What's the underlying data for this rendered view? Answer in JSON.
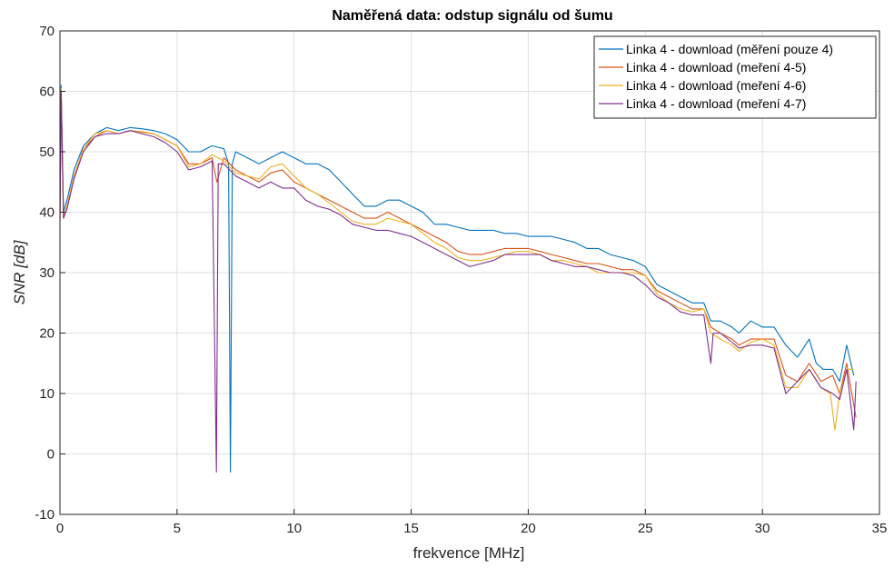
{
  "chart_data": {
    "type": "line",
    "title": "Naměřená data: odstup signálu od šumu",
    "xlabel": "frekvence [MHz]",
    "ylabel": "SNR [dB]",
    "xlim": [
      0,
      35
    ],
    "ylim": [
      -10,
      70
    ],
    "xticks": [
      0,
      5,
      10,
      15,
      20,
      25,
      30,
      35
    ],
    "yticks": [
      -10,
      0,
      10,
      20,
      30,
      40,
      50,
      60,
      70
    ],
    "grid": true,
    "legend_position": "top-right",
    "series": [
      {
        "name": "Linka 4 - download (měření pouze 4)",
        "color": "#0072BD",
        "points": [
          [
            0,
            40
          ],
          [
            0.05,
            61
          ],
          [
            0.15,
            40
          ],
          [
            0.3,
            42
          ],
          [
            0.6,
            47
          ],
          [
            1,
            51
          ],
          [
            1.5,
            53
          ],
          [
            2,
            54
          ],
          [
            2.5,
            53.5
          ],
          [
            3,
            54
          ],
          [
            3.5,
            53.8
          ],
          [
            4,
            53.5
          ],
          [
            4.5,
            53
          ],
          [
            5,
            52
          ],
          [
            5.5,
            50
          ],
          [
            6,
            50
          ],
          [
            6.5,
            51
          ],
          [
            7,
            50.5
          ],
          [
            7.2,
            48
          ],
          [
            7.28,
            -3
          ],
          [
            7.36,
            48
          ],
          [
            7.5,
            50
          ],
          [
            8,
            49
          ],
          [
            8.5,
            48
          ],
          [
            9,
            49
          ],
          [
            9.5,
            50
          ],
          [
            10,
            49
          ],
          [
            10.5,
            48
          ],
          [
            11,
            48
          ],
          [
            11.5,
            47
          ],
          [
            12,
            45
          ],
          [
            12.5,
            43
          ],
          [
            13,
            41
          ],
          [
            13.5,
            41
          ],
          [
            14,
            42
          ],
          [
            14.5,
            42
          ],
          [
            15,
            41
          ],
          [
            15.5,
            40
          ],
          [
            16,
            38
          ],
          [
            16.5,
            38
          ],
          [
            17,
            37.5
          ],
          [
            17.5,
            37
          ],
          [
            18,
            37
          ],
          [
            18.5,
            37
          ],
          [
            19,
            36.5
          ],
          [
            19.5,
            36.5
          ],
          [
            20,
            36
          ],
          [
            20.5,
            36
          ],
          [
            21,
            36
          ],
          [
            21.5,
            35.5
          ],
          [
            22,
            35
          ],
          [
            22.5,
            34
          ],
          [
            23,
            34
          ],
          [
            23.5,
            33
          ],
          [
            24,
            32.5
          ],
          [
            24.5,
            32
          ],
          [
            25,
            31
          ],
          [
            25.5,
            28
          ],
          [
            26,
            27
          ],
          [
            26.5,
            26
          ],
          [
            27,
            25
          ],
          [
            27.5,
            25
          ],
          [
            27.8,
            22
          ],
          [
            28.2,
            22
          ],
          [
            28.7,
            21
          ],
          [
            29,
            20
          ],
          [
            29.5,
            22
          ],
          [
            30,
            21
          ],
          [
            30.5,
            21
          ],
          [
            31,
            18
          ],
          [
            31.5,
            16
          ],
          [
            32,
            19
          ],
          [
            32.3,
            15
          ],
          [
            32.6,
            14
          ],
          [
            33,
            14
          ],
          [
            33.3,
            12
          ],
          [
            33.6,
            18
          ],
          [
            33.9,
            13
          ]
        ]
      },
      {
        "name": "Linka 4 - download (meření 4-5)",
        "color": "#D95319",
        "points": [
          [
            0,
            39
          ],
          [
            0.05,
            60
          ],
          [
            0.15,
            39
          ],
          [
            0.3,
            41
          ],
          [
            0.6,
            46
          ],
          [
            1,
            50.5
          ],
          [
            1.5,
            52.5
          ],
          [
            2,
            53.5
          ],
          [
            2.5,
            53
          ],
          [
            3,
            53.5
          ],
          [
            3.5,
            53.3
          ],
          [
            4,
            53
          ],
          [
            4.5,
            52
          ],
          [
            5,
            51
          ],
          [
            5.5,
            48
          ],
          [
            6,
            48
          ],
          [
            6.5,
            49
          ],
          [
            6.7,
            45
          ],
          [
            7,
            49
          ],
          [
            7.5,
            47
          ],
          [
            8,
            46
          ],
          [
            8.5,
            45
          ],
          [
            9,
            46.5
          ],
          [
            9.5,
            47
          ],
          [
            10,
            45
          ],
          [
            10.5,
            44
          ],
          [
            11,
            43
          ],
          [
            11.5,
            42
          ],
          [
            12,
            41
          ],
          [
            12.5,
            40
          ],
          [
            13,
            39
          ],
          [
            13.5,
            39
          ],
          [
            14,
            40
          ],
          [
            14.5,
            39
          ],
          [
            15,
            38
          ],
          [
            15.5,
            37
          ],
          [
            16,
            36
          ],
          [
            16.5,
            35
          ],
          [
            17,
            33.5
          ],
          [
            17.5,
            33
          ],
          [
            18,
            33
          ],
          [
            18.5,
            33.5
          ],
          [
            19,
            34
          ],
          [
            19.5,
            34
          ],
          [
            20,
            34
          ],
          [
            20.5,
            33.5
          ],
          [
            21,
            33
          ],
          [
            21.5,
            32.5
          ],
          [
            22,
            32
          ],
          [
            22.5,
            31.5
          ],
          [
            23,
            31.5
          ],
          [
            23.5,
            31
          ],
          [
            24,
            30.5
          ],
          [
            24.5,
            30.5
          ],
          [
            25,
            29.5
          ],
          [
            25.5,
            27
          ],
          [
            26,
            26
          ],
          [
            26.5,
            25
          ],
          [
            27,
            24
          ],
          [
            27.5,
            24
          ],
          [
            27.8,
            21
          ],
          [
            28.2,
            20
          ],
          [
            28.7,
            19
          ],
          [
            29,
            18
          ],
          [
            29.5,
            19
          ],
          [
            30,
            19
          ],
          [
            30.5,
            19
          ],
          [
            31,
            13
          ],
          [
            31.5,
            12
          ],
          [
            32,
            15
          ],
          [
            32.5,
            12
          ],
          [
            33,
            13
          ],
          [
            33.3,
            10
          ],
          [
            33.6,
            15
          ],
          [
            34,
            6
          ]
        ]
      },
      {
        "name": "Linka 4 - download (meření 4-6)",
        "color": "#EDB120",
        "points": [
          [
            0,
            38.5
          ],
          [
            0.05,
            60.5
          ],
          [
            0.15,
            39
          ],
          [
            0.3,
            41
          ],
          [
            0.6,
            46
          ],
          [
            1,
            50.5
          ],
          [
            1.5,
            53
          ],
          [
            2,
            53.5
          ],
          [
            2.5,
            53
          ],
          [
            3,
            53.5
          ],
          [
            3.5,
            53.2
          ],
          [
            4,
            53
          ],
          [
            4.5,
            52
          ],
          [
            5,
            51
          ],
          [
            5.5,
            47.5
          ],
          [
            6,
            48
          ],
          [
            6.5,
            49.5
          ],
          [
            7,
            48.5
          ],
          [
            7.5,
            46.5
          ],
          [
            8,
            46
          ],
          [
            8.5,
            45.5
          ],
          [
            9,
            47.5
          ],
          [
            9.5,
            48
          ],
          [
            10,
            46
          ],
          [
            10.5,
            44
          ],
          [
            11,
            43
          ],
          [
            11.5,
            41.5
          ],
          [
            12,
            40
          ],
          [
            12.5,
            38.5
          ],
          [
            13,
            38
          ],
          [
            13.5,
            38
          ],
          [
            14,
            39
          ],
          [
            14.5,
            38.5
          ],
          [
            15,
            38
          ],
          [
            15.5,
            36.5
          ],
          [
            16,
            35
          ],
          [
            16.5,
            34
          ],
          [
            17,
            32.5
          ],
          [
            17.5,
            32
          ],
          [
            18,
            32
          ],
          [
            18.5,
            32.5
          ],
          [
            19,
            33
          ],
          [
            19.5,
            33.5
          ],
          [
            20,
            33.5
          ],
          [
            20.5,
            33
          ],
          [
            21,
            32
          ],
          [
            21.5,
            32
          ],
          [
            22,
            31.5
          ],
          [
            22.5,
            31
          ],
          [
            23,
            30
          ],
          [
            23.5,
            30
          ],
          [
            24,
            30
          ],
          [
            24.5,
            30
          ],
          [
            25,
            29.5
          ],
          [
            25.5,
            26.5
          ],
          [
            26,
            25
          ],
          [
            26.5,
            24
          ],
          [
            27,
            23.5
          ],
          [
            27.5,
            24
          ],
          [
            27.8,
            20
          ],
          [
            28.2,
            19
          ],
          [
            28.7,
            18
          ],
          [
            29,
            17
          ],
          [
            29.5,
            18.5
          ],
          [
            30,
            19
          ],
          [
            30.5,
            18
          ],
          [
            31,
            11
          ],
          [
            31.5,
            11
          ],
          [
            32,
            14
          ],
          [
            32.5,
            11
          ],
          [
            32.9,
            10
          ],
          [
            33.1,
            4
          ],
          [
            33.3,
            10
          ],
          [
            33.6,
            14
          ],
          [
            33.9,
            14
          ]
        ]
      },
      {
        "name": "Linka 4 - download (meření 4-7)",
        "color": "#7E2F8E",
        "points": [
          [
            0,
            38.5
          ],
          [
            0.05,
            60
          ],
          [
            0.15,
            39
          ],
          [
            0.3,
            40.5
          ],
          [
            0.6,
            45.5
          ],
          [
            1,
            50
          ],
          [
            1.5,
            52.5
          ],
          [
            2,
            53
          ],
          [
            2.5,
            53
          ],
          [
            3,
            53.5
          ],
          [
            3.5,
            53
          ],
          [
            4,
            52.5
          ],
          [
            4.5,
            51.5
          ],
          [
            5,
            50
          ],
          [
            5.5,
            47
          ],
          [
            6,
            47.5
          ],
          [
            6.5,
            48.5
          ],
          [
            6.68,
            -3
          ],
          [
            6.76,
            48
          ],
          [
            7,
            48
          ],
          [
            7.5,
            46
          ],
          [
            8,
            45
          ],
          [
            8.5,
            44
          ],
          [
            9,
            45
          ],
          [
            9.5,
            44
          ],
          [
            10,
            44
          ],
          [
            10.5,
            42
          ],
          [
            11,
            41
          ],
          [
            11.5,
            40.5
          ],
          [
            12,
            39.5
          ],
          [
            12.5,
            38
          ],
          [
            13,
            37.5
          ],
          [
            13.5,
            37
          ],
          [
            14,
            37
          ],
          [
            14.5,
            36.5
          ],
          [
            15,
            36
          ],
          [
            15.5,
            35
          ],
          [
            16,
            34
          ],
          [
            16.5,
            33
          ],
          [
            17,
            32
          ],
          [
            17.5,
            31
          ],
          [
            18,
            31.5
          ],
          [
            18.5,
            32
          ],
          [
            19,
            33
          ],
          [
            19.5,
            33
          ],
          [
            20,
            33
          ],
          [
            20.5,
            33
          ],
          [
            21,
            32
          ],
          [
            21.5,
            31.5
          ],
          [
            22,
            31
          ],
          [
            22.5,
            31
          ],
          [
            23,
            30.5
          ],
          [
            23.5,
            30
          ],
          [
            24,
            30
          ],
          [
            24.5,
            29.5
          ],
          [
            25,
            28
          ],
          [
            25.5,
            26
          ],
          [
            26,
            25
          ],
          [
            26.5,
            23.5
          ],
          [
            27,
            23
          ],
          [
            27.5,
            23
          ],
          [
            27.8,
            15
          ],
          [
            27.9,
            20
          ],
          [
            28.2,
            20
          ],
          [
            28.7,
            18.5
          ],
          [
            29,
            17.5
          ],
          [
            29.5,
            18
          ],
          [
            30,
            18
          ],
          [
            30.5,
            17.5
          ],
          [
            31,
            10
          ],
          [
            31.5,
            12
          ],
          [
            32,
            14
          ],
          [
            32.5,
            11
          ],
          [
            33,
            10
          ],
          [
            33.3,
            9
          ],
          [
            33.6,
            14
          ],
          [
            33.9,
            4
          ],
          [
            34,
            12
          ]
        ]
      }
    ]
  }
}
